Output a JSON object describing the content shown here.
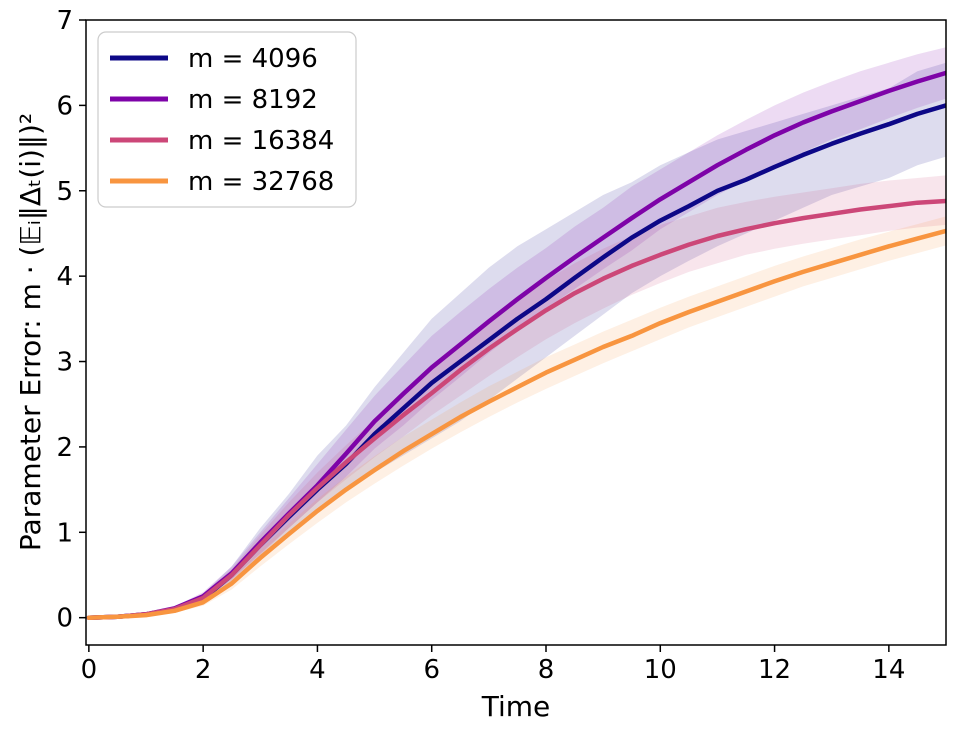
{
  "chart_data": {
    "type": "line",
    "title": "",
    "xlabel": "Time",
    "ylabel": "Parameter Error: m · (𝔼ᵢ‖Δₜ(i)‖)²",
    "xlim": [
      -0.05,
      15
    ],
    "ylim": [
      -0.32,
      7
    ],
    "xticks": [
      0,
      2,
      4,
      6,
      8,
      10,
      12,
      14
    ],
    "yticks": [
      0,
      1,
      2,
      3,
      4,
      5,
      6,
      7
    ],
    "legend_position": "top-left",
    "x": [
      0,
      0.5,
      1,
      1.5,
      2,
      2.5,
      3,
      3.5,
      4,
      4.5,
      5,
      5.5,
      6,
      6.5,
      7,
      7.5,
      8,
      8.5,
      9,
      9.5,
      10,
      10.5,
      11,
      11.5,
      12,
      12.5,
      13,
      13.5,
      14,
      14.5,
      15
    ],
    "series": [
      {
        "name": "m = 4096",
        "color": "#0d0887",
        "values": [
          0,
          0.01,
          0.04,
          0.1,
          0.22,
          0.5,
          0.85,
          1.18,
          1.5,
          1.8,
          2.15,
          2.45,
          2.75,
          3.0,
          3.25,
          3.5,
          3.73,
          3.98,
          4.22,
          4.45,
          4.65,
          4.82,
          5.0,
          5.13,
          5.28,
          5.42,
          5.55,
          5.67,
          5.78,
          5.9,
          6.0
        ],
        "lower": [
          0,
          0.005,
          0.03,
          0.08,
          0.18,
          0.42,
          0.7,
          0.98,
          1.25,
          1.5,
          1.7,
          1.9,
          2.1,
          2.3,
          2.55,
          2.8,
          3.05,
          3.3,
          3.55,
          3.8,
          4.0,
          4.18,
          4.35,
          4.5,
          4.65,
          4.8,
          4.95,
          5.05,
          5.15,
          5.3,
          5.4
        ],
        "upper": [
          0,
          0.015,
          0.05,
          0.12,
          0.28,
          0.6,
          1.05,
          1.45,
          1.9,
          2.25,
          2.7,
          3.1,
          3.5,
          3.8,
          4.1,
          4.35,
          4.55,
          4.75,
          4.95,
          5.1,
          5.3,
          5.45,
          5.6,
          5.7,
          5.8,
          5.9,
          6.0,
          6.1,
          6.2,
          6.4,
          6.5
        ]
      },
      {
        "name": "m = 8192",
        "color": "#7e03a8",
        "values": [
          0,
          0.01,
          0.04,
          0.11,
          0.25,
          0.52,
          0.88,
          1.22,
          1.55,
          1.92,
          2.3,
          2.62,
          2.93,
          3.2,
          3.47,
          3.73,
          3.98,
          4.22,
          4.45,
          4.68,
          4.9,
          5.1,
          5.3,
          5.48,
          5.65,
          5.8,
          5.93,
          6.05,
          6.17,
          6.28,
          6.38
        ],
        "lower": [
          0,
          0.005,
          0.03,
          0.09,
          0.2,
          0.45,
          0.75,
          1.05,
          1.35,
          1.65,
          1.98,
          2.25,
          2.55,
          2.82,
          3.1,
          3.36,
          3.62,
          3.85,
          4.08,
          4.3,
          4.55,
          4.75,
          4.95,
          5.12,
          5.3,
          5.45,
          5.6,
          5.72,
          5.85,
          5.97,
          6.08
        ],
        "upper": [
          0,
          0.015,
          0.05,
          0.13,
          0.3,
          0.6,
          1.0,
          1.4,
          1.8,
          2.2,
          2.6,
          2.95,
          3.3,
          3.58,
          3.85,
          4.1,
          4.33,
          4.58,
          4.8,
          5.05,
          5.25,
          5.45,
          5.65,
          5.83,
          6.0,
          6.15,
          6.28,
          6.4,
          6.5,
          6.6,
          6.68
        ]
      },
      {
        "name": "m = 16384",
        "color": "#cc4778",
        "values": [
          0,
          0.01,
          0.04,
          0.1,
          0.23,
          0.5,
          0.85,
          1.2,
          1.52,
          1.82,
          2.1,
          2.37,
          2.63,
          2.9,
          3.15,
          3.38,
          3.6,
          3.8,
          3.97,
          4.12,
          4.25,
          4.37,
          4.47,
          4.55,
          4.62,
          4.68,
          4.73,
          4.78,
          4.82,
          4.86,
          4.88
        ],
        "lower": [
          0,
          0.005,
          0.03,
          0.08,
          0.18,
          0.43,
          0.73,
          1.05,
          1.35,
          1.62,
          1.88,
          2.12,
          2.37,
          2.6,
          2.83,
          3.05,
          3.26,
          3.45,
          3.62,
          3.78,
          3.92,
          4.05,
          4.15,
          4.25,
          4.32,
          4.38,
          4.43,
          4.48,
          4.53,
          4.57,
          4.6
        ],
        "upper": [
          0,
          0.015,
          0.05,
          0.12,
          0.28,
          0.57,
          0.97,
          1.35,
          1.7,
          2.02,
          2.32,
          2.6,
          2.9,
          3.2,
          3.47,
          3.72,
          3.95,
          4.15,
          4.32,
          4.47,
          4.6,
          4.7,
          4.8,
          4.87,
          4.93,
          4.98,
          5.03,
          5.08,
          5.12,
          5.15,
          5.18
        ]
      },
      {
        "name": "m = 32768",
        "color": "#f89540",
        "values": [
          0,
          0.01,
          0.03,
          0.08,
          0.18,
          0.4,
          0.7,
          0.98,
          1.25,
          1.5,
          1.73,
          1.95,
          2.15,
          2.35,
          2.53,
          2.7,
          2.87,
          3.02,
          3.17,
          3.3,
          3.45,
          3.58,
          3.7,
          3.82,
          3.94,
          4.05,
          4.15,
          4.25,
          4.35,
          4.44,
          4.53
        ],
        "lower": [
          0,
          0.005,
          0.02,
          0.06,
          0.14,
          0.33,
          0.6,
          0.86,
          1.11,
          1.35,
          1.57,
          1.78,
          1.98,
          2.17,
          2.35,
          2.52,
          2.68,
          2.83,
          2.98,
          3.12,
          3.26,
          3.4,
          3.52,
          3.64,
          3.76,
          3.88,
          3.98,
          4.08,
          4.18,
          4.27,
          4.36
        ],
        "upper": [
          0,
          0.015,
          0.04,
          0.1,
          0.22,
          0.47,
          0.8,
          1.1,
          1.39,
          1.65,
          1.89,
          2.12,
          2.32,
          2.52,
          2.71,
          2.88,
          3.05,
          3.2,
          3.35,
          3.49,
          3.63,
          3.76,
          3.88,
          4.0,
          4.12,
          4.23,
          4.33,
          4.43,
          4.52,
          4.61,
          4.7
        ]
      }
    ]
  }
}
